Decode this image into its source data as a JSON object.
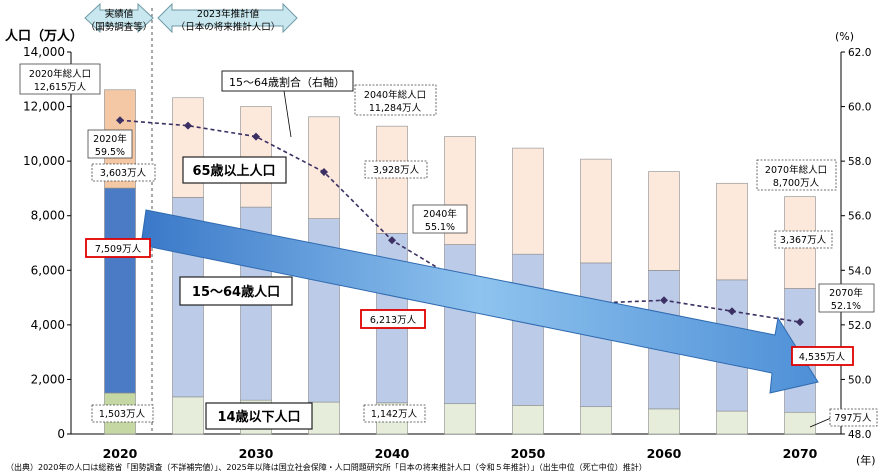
{
  "chart_data": {
    "type": "bar",
    "categories": [
      "2020",
      "2025",
      "2030",
      "2035",
      "2040",
      "2045",
      "2050",
      "2055",
      "2060",
      "2065",
      "2070"
    ],
    "x_tick_labels": [
      "2020",
      "2030",
      "2040",
      "2050",
      "2060",
      "2070"
    ],
    "x_unit": "(年)",
    "y_left": {
      "label": "人口（万人）",
      "ylim": [
        0,
        14000
      ],
      "ticks": [
        "0",
        "2,000",
        "4,000",
        "6,000",
        "8,000",
        "10,000",
        "12,000",
        "14,000"
      ]
    },
    "y_right": {
      "label": "(%)",
      "ylim": [
        48,
        62
      ],
      "ticks": [
        "48.0",
        "50.0",
        "52.0",
        "54.0",
        "56.0",
        "58.0",
        "60.0",
        "62.0"
      ]
    },
    "series": [
      {
        "name": "14歳以下人口",
        "kind": "stacked_bar",
        "values": [
          1503,
          1360,
          1240,
          1170,
          1142,
          1110,
          1050,
          1000,
          920,
          840,
          797
        ],
        "colors": {
          "actual": "#c5d8a4",
          "projected": "#e6eddb"
        }
      },
      {
        "name": "15～64歳人口",
        "kind": "stacked_bar",
        "values": [
          7509,
          7310,
          7076,
          6722,
          6213,
          5832,
          5540,
          5270,
          5078,
          4809,
          4535
        ],
        "colors": {
          "actual": "#4b7bc4",
          "projected": "#bccbe8"
        }
      },
      {
        "name": "65歳以上人口",
        "kind": "stacked_bar",
        "values": [
          3603,
          3653,
          3684,
          3733,
          3928,
          3959,
          3888,
          3804,
          3617,
          3541,
          3367
        ],
        "colors": {
          "actual": "#f4c7a5",
          "projected": "#fde9dc"
        }
      },
      {
        "name": "15～64歳割合（右軸）",
        "kind": "line",
        "axis": "right",
        "values": [
          59.5,
          59.3,
          58.9,
          57.6,
          55.1,
          53.6,
          52.9,
          52.8,
          52.9,
          52.5,
          52.1
        ],
        "color": "#3b2f63"
      }
    ],
    "headers": {
      "actual": {
        "line1": "実績値",
        "line2": "（国勢調査等）"
      },
      "projected": {
        "line1": "2023年推計値",
        "line2": "（日本の将来推計人口）"
      }
    },
    "annotations": {
      "total_2020": {
        "line1": "2020年総人口",
        "line2": "12,615万人"
      },
      "total_2040": {
        "line1": "2040年総人口",
        "line2": "11,284万人"
      },
      "total_2070": {
        "line1": "2070年総人口",
        "line2": "8,700万人"
      },
      "ratio_2020": {
        "line1": "2020年",
        "line2": "59.5%"
      },
      "ratio_2040": {
        "line1": "2040年",
        "line2": "55.1%"
      },
      "ratio_2070": {
        "line1": "2070年",
        "line2": "52.1%"
      },
      "line_label": "15～64歳割合（右軸）",
      "band_old": "65歳以上人口",
      "band_working": "15～64歳人口",
      "band_young": "14歳以下人口",
      "old_2020": "3,603万人",
      "old_2040": "3,928万人",
      "old_2070": "3,367万人",
      "work_2020": "7,509万人",
      "work_2040": "6,213万人",
      "work_2070": "4,535万人",
      "young_2020": "1,503万人",
      "young_2040": "1,142万人",
      "young_2070": "797万人"
    },
    "source": "（出典）2020年の人口は総務省「国勢調査（不詳補完値）」、2025年以降は国立社会保障・人口問題研究所「日本の将来推計人口（令和５年推計）」（出生中位（死亡中位）推計）"
  }
}
